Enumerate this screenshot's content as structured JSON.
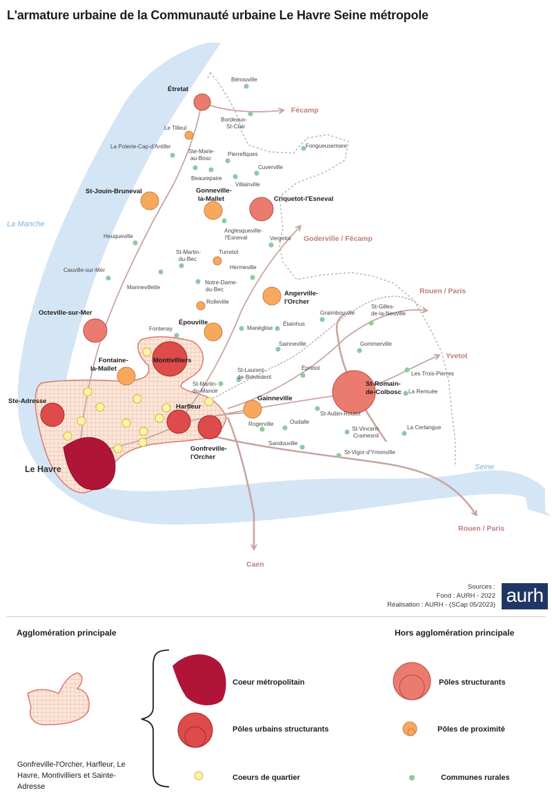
{
  "title": "L'armature urbaine de la Communauté urbaine Le Havre Seine métropole",
  "water_labels": {
    "manche": "La Manche",
    "seine": "Seine"
  },
  "directions": {
    "fecamp": "Fécamp",
    "goderville": "Goderville / Fécamp",
    "rouen1": "Rouen / Paris",
    "yvetot": "Yvetot",
    "rouen2": "Rouen / Paris",
    "caen": "Caen"
  },
  "places": {
    "etretat": "Étretat",
    "benouville": "Bénouville",
    "bordeaux1": "Bordeaux-",
    "bordeaux2": "St-Clair",
    "letilleul": "Le Tilleul",
    "poterie": "La Poterie-Cap-d'Antifer",
    "stemarie1": "Ste-Marie-",
    "stemarie2": "au-Bosc",
    "pierrefiques": "Pierrefiques",
    "beaurepaire": "Beaurepaire",
    "cuverville": "Cuverville",
    "villainville": "Villainville",
    "fongueusemare": "Fongueusemare",
    "stjouin": "St-Jouin-Bruneval",
    "gonneville1": "Gonneville-",
    "gonneville2": "la-Mallet",
    "criquetot": "Criquetot-l'Esneval",
    "anglesqueville1": "Anglesqueville-",
    "anglesqueville2": "l'Esneval",
    "heuqueville": "Heuqueville",
    "vergetot": "Vergetot",
    "stmartinbec1": "St-Martin-",
    "stmartinbec2": "du-Bec",
    "turretot": "Turretot",
    "cauville": "Cauville-sur-Mer",
    "hermeville": "Hermeville",
    "mannevillette": "Mannevillette",
    "notredame1": "Notre-Dame-",
    "notredame2": "du-Bec",
    "angerville1": "Angerville-",
    "angerville2": "l'Orcher",
    "rolleville": "Rolleville",
    "octeville": "Octeville-sur-Mer",
    "graimbouville": "Graimbouville",
    "stgilles1": "St-Gilles-",
    "stgilles2": "de-la-Neuville",
    "epouville": "Épouville",
    "fontenay": "Fontenay",
    "maneglise": "Manéglise",
    "etainhus": "Étainhus",
    "sainneville": "Sainneville",
    "gommerville": "Gommerville",
    "fontaine1": "Fontaine-",
    "fontaine2": "la-Mallet",
    "montivilliers": "Montivilliers",
    "stlaurent1": "St-Laurent-",
    "stlaurent2": "de-Brèvedent",
    "epretot": "Épretot",
    "troispierres": "Les Trois-Pierres",
    "stmartinmanoir1": "St-Martin-",
    "stmartinmanoir2": "du-Manoir",
    "stromain1": "St-Romain-",
    "stromain2": "de-Colbosc",
    "remuee": "La Remuée",
    "steadresse": "Ste-Adresse",
    "harfleur": "Harfleur",
    "gainneville": "Gainneville",
    "staubin": "St-Aubin-Routot",
    "rogerville": "Rogerville",
    "oudalle": "Oudalle",
    "stvincent1": "St-Vincent-",
    "stvincent2": "Cramesnil",
    "cerlangue": "La Cerlangue",
    "gonfreville1": "Gonfreville-",
    "gonfreville2": "l'Orcher",
    "sandouville": "Sandouville",
    "stvigor": "St-Vigor-d'Ymonville",
    "lehavre": "Le Havre"
  },
  "sources": {
    "line1": "Sources :",
    "line2": "Fond : AURH - 2022",
    "line3": "Réalisation : AURH - (SCap 05/2023)"
  },
  "logo": "aurh",
  "legend": {
    "left_header": "Agglomération principale",
    "right_header": "Hors agglomération principale",
    "coeur_metropolitain": "Coeur métropolitain",
    "poles_urbains": "Pôles urbains structurants",
    "coeurs_quartier": "Coeurs de quartier",
    "poles_structurants": "Pôles structurants",
    "poles_proximite": "Pôles de proximité",
    "communes_rurales": "Communes rurales",
    "agglo_note": "Gonfreville-l'Orcher, Harfleur,  Le Havre, Montivilliers et Sainte-Adresse"
  },
  "colors": {
    "water": "#d4e5f5",
    "water_text": "#7cb1d8",
    "route": "#c9a4a1",
    "route_text": "#c07c7c",
    "core": "#b01538",
    "urban_pole": "#dd4b4b",
    "structuring_pole": "#ea7b6e",
    "proximity_pole": "#f6a95c",
    "quarter": "#fbf3a6",
    "rural": "#8fcaa0",
    "agglo": "#d9776f"
  }
}
